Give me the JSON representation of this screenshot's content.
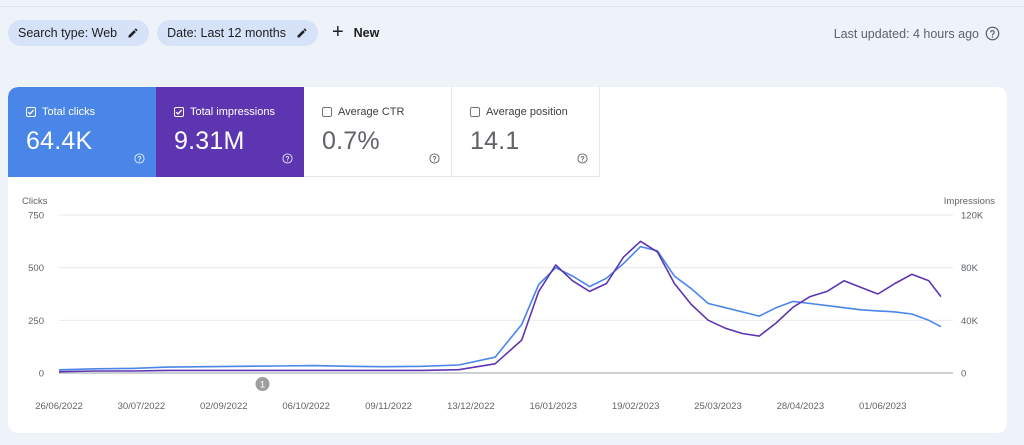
{
  "filters": {
    "search_type": "Search type: Web",
    "date": "Date: Last 12 months",
    "new_label": "New"
  },
  "status": {
    "last_updated": "Last updated: 4 hours ago"
  },
  "metrics": [
    {
      "label": "Total clicks",
      "value": "64.4K",
      "checked": true,
      "color": "#4a86e8"
    },
    {
      "label": "Total impressions",
      "value": "9.31M",
      "checked": true,
      "color": "#5e35b1"
    },
    {
      "label": "Average CTR",
      "value": "0.7%",
      "checked": false
    },
    {
      "label": "Average position",
      "value": "14.1",
      "checked": false
    }
  ],
  "chart_data": {
    "type": "line",
    "left_axis": {
      "title": "Clicks",
      "ticks": [
        0,
        250,
        500,
        750
      ],
      "ylim": [
        0,
        750
      ]
    },
    "right_axis": {
      "title": "Impressions",
      "ticks": [
        "0",
        "40K",
        "80K",
        "120K"
      ],
      "ylim": [
        0,
        120000
      ]
    },
    "x_labels": [
      "26/06/2022",
      "30/07/2022",
      "02/09/2022",
      "06/10/2022",
      "09/11/2022",
      "13/12/2022",
      "16/01/2023",
      "19/02/2023",
      "25/03/2023",
      "28/04/2023",
      "01/06/2023"
    ],
    "annotation": {
      "label": "1",
      "date": "18/09/2022"
    },
    "grid": true,
    "series": [
      {
        "name": "Clicks",
        "axis": "left",
        "color": "#4a86e8",
        "points": [
          [
            "26/06/2022",
            15
          ],
          [
            "11/07/2022",
            20
          ],
          [
            "26/07/2022",
            22
          ],
          [
            "10/08/2022",
            28
          ],
          [
            "25/08/2022",
            30
          ],
          [
            "09/09/2022",
            32
          ],
          [
            "24/09/2022",
            33
          ],
          [
            "09/10/2022",
            35
          ],
          [
            "24/10/2022",
            32
          ],
          [
            "08/11/2022",
            30
          ],
          [
            "23/11/2022",
            32
          ],
          [
            "08/12/2022",
            38
          ],
          [
            "23/12/2022",
            75
          ],
          [
            "03/01/2023",
            230
          ],
          [
            "10/01/2023",
            420
          ],
          [
            "17/01/2023",
            500
          ],
          [
            "24/01/2023",
            460
          ],
          [
            "31/01/2023",
            410
          ],
          [
            "07/02/2023",
            450
          ],
          [
            "14/02/2023",
            520
          ],
          [
            "21/02/2023",
            600
          ],
          [
            "28/02/2023",
            580
          ],
          [
            "07/03/2023",
            460
          ],
          [
            "14/03/2023",
            400
          ],
          [
            "21/03/2023",
            330
          ],
          [
            "28/03/2023",
            310
          ],
          [
            "04/04/2023",
            290
          ],
          [
            "11/04/2023",
            270
          ],
          [
            "18/04/2023",
            310
          ],
          [
            "25/04/2023",
            340
          ],
          [
            "02/05/2023",
            330
          ],
          [
            "09/05/2023",
            320
          ],
          [
            "16/05/2023",
            310
          ],
          [
            "23/05/2023",
            300
          ],
          [
            "30/05/2023",
            295
          ],
          [
            "06/06/2023",
            290
          ],
          [
            "13/06/2023",
            280
          ],
          [
            "20/06/2023",
            250
          ],
          [
            "25/06/2023",
            220
          ]
        ]
      },
      {
        "name": "Impressions",
        "axis": "right",
        "color": "#5e35b1",
        "points": [
          [
            "26/06/2022",
            1000
          ],
          [
            "11/07/2022",
            1500
          ],
          [
            "26/07/2022",
            1500
          ],
          [
            "10/08/2022",
            2000
          ],
          [
            "25/08/2022",
            2000
          ],
          [
            "09/09/2022",
            2000
          ],
          [
            "24/09/2022",
            2000
          ],
          [
            "09/10/2022",
            2000
          ],
          [
            "24/10/2022",
            2000
          ],
          [
            "08/11/2022",
            2000
          ],
          [
            "23/11/2022",
            2000
          ],
          [
            "08/12/2022",
            2500
          ],
          [
            "23/12/2022",
            7000
          ],
          [
            "03/01/2023",
            25000
          ],
          [
            "10/01/2023",
            62000
          ],
          [
            "17/01/2023",
            82000
          ],
          [
            "24/01/2023",
            70000
          ],
          [
            "31/01/2023",
            62000
          ],
          [
            "07/02/2023",
            68000
          ],
          [
            "14/02/2023",
            88000
          ],
          [
            "21/02/2023",
            100000
          ],
          [
            "28/02/2023",
            92000
          ],
          [
            "07/03/2023",
            68000
          ],
          [
            "14/03/2023",
            52000
          ],
          [
            "21/03/2023",
            40000
          ],
          [
            "28/03/2023",
            34000
          ],
          [
            "04/04/2023",
            30000
          ],
          [
            "11/04/2023",
            28000
          ],
          [
            "18/04/2023",
            38000
          ],
          [
            "25/04/2023",
            50000
          ],
          [
            "02/05/2023",
            58000
          ],
          [
            "09/05/2023",
            62000
          ],
          [
            "16/05/2023",
            70000
          ],
          [
            "23/05/2023",
            65000
          ],
          [
            "30/05/2023",
            60000
          ],
          [
            "06/06/2023",
            68000
          ],
          [
            "13/06/2023",
            75000
          ],
          [
            "20/06/2023",
            70000
          ],
          [
            "25/06/2023",
            58000
          ]
        ]
      }
    ]
  }
}
